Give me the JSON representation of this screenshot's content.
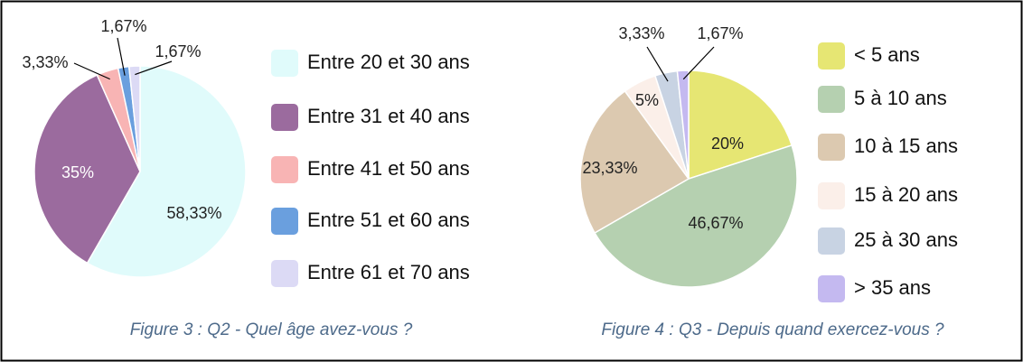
{
  "chart_data": [
    {
      "type": "pie",
      "categories": [
        "Entre 20 et 30 ans",
        "Entre 31 et 40 ans",
        "Entre 41 et 50 ans",
        "Entre 51 et 60 ans",
        "Entre 61 et 70 ans"
      ],
      "values": [
        58.33,
        35,
        3.33,
        1.67,
        1.67
      ],
      "value_labels": [
        "58,33%",
        "35%",
        "3,33%",
        "1,67%",
        "1,67%"
      ],
      "colors": [
        "#e0fbfb",
        "#9b6b9e",
        "#f8b4b4",
        "#6a9fde",
        "#dcdaf5"
      ],
      "caption": "Figure 3 : Q2 - Quel âge avez-vous ?"
    },
    {
      "type": "pie",
      "categories": [
        "< 5 ans",
        "5 à 10 ans",
        "10 à 15 ans",
        "15 à 20 ans",
        "25 à 30 ans",
        "> 35 ans"
      ],
      "values": [
        20,
        46.67,
        23.33,
        5,
        3.33,
        1.67
      ],
      "value_labels": [
        "20%",
        "46,67%",
        "23,33%",
        "5%",
        "3,33%",
        "1,67%"
      ],
      "colors": [
        "#e6e673",
        "#b5d0b0",
        "#dcc9b0",
        "#fbefe9",
        "#c8d3e3",
        "#c4b9f0"
      ],
      "caption": "Figure 4 : Q3 - Depuis quand exercez-vous ?"
    }
  ]
}
